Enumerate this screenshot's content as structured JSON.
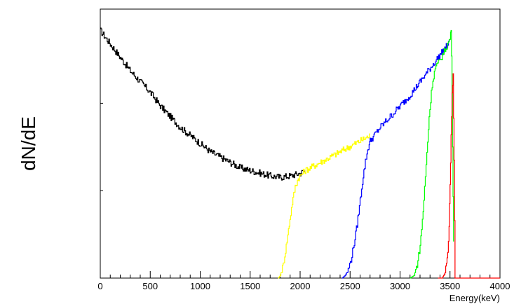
{
  "chart_data": {
    "type": "line",
    "title": "",
    "xlabel": "Energy(keV)",
    "ylabel": "dN/dE",
    "xlim": [
      0,
      4000
    ],
    "ylim": [
      0,
      1.0
    ],
    "x_ticks": [
      0,
      500,
      1000,
      1500,
      2000,
      2500,
      3000,
      3500,
      4000
    ],
    "x_tick_labels": [
      "0",
      "500",
      "1000",
      "1500",
      "2000",
      "2500",
      "3000",
      "3500",
      "4000"
    ],
    "y_tick_labels_shown": false,
    "grid": false,
    "legend": "none",
    "series": [
      {
        "color": "#000000",
        "x": [
          0,
          100,
          200,
          300,
          400,
          500,
          600,
          700,
          800,
          900,
          1000,
          1100,
          1200,
          1300,
          1400,
          1500,
          1600,
          1700,
          1800,
          1900,
          2000,
          2050
        ],
        "y": [
          0.92,
          0.87,
          0.82,
          0.77,
          0.73,
          0.69,
          0.64,
          0.6,
          0.56,
          0.53,
          0.5,
          0.47,
          0.45,
          0.43,
          0.41,
          0.4,
          0.39,
          0.38,
          0.375,
          0.38,
          0.39,
          0.4
        ]
      },
      {
        "color": "#ffff00",
        "x": [
          1780,
          1800,
          1830,
          1860,
          1890,
          1920,
          1950,
          1980,
          2000,
          2050,
          2100,
          2200,
          2300,
          2400,
          2500,
          2600,
          2700
        ],
        "y": [
          0.0,
          0.01,
          0.05,
          0.12,
          0.2,
          0.28,
          0.34,
          0.37,
          0.38,
          0.4,
          0.41,
          0.43,
          0.45,
          0.47,
          0.49,
          0.51,
          0.53
        ]
      },
      {
        "color": "#0000ff",
        "x": [
          2420,
          2450,
          2480,
          2510,
          2540,
          2570,
          2600,
          2630,
          2660,
          2690,
          2700,
          2800,
          2900,
          3000,
          3100,
          3200,
          3300,
          3400,
          3500
        ],
        "y": [
          0.0,
          0.01,
          0.03,
          0.07,
          0.13,
          0.2,
          0.29,
          0.38,
          0.45,
          0.5,
          0.51,
          0.56,
          0.6,
          0.64,
          0.68,
          0.73,
          0.78,
          0.83,
          0.88
        ]
      },
      {
        "color": "#00ff00",
        "x": [
          3100,
          3140,
          3170,
          3200,
          3230,
          3260,
          3290,
          3320,
          3350,
          3400,
          3450,
          3500,
          3510,
          3520,
          3530,
          3540
        ],
        "y": [
          0.0,
          0.01,
          0.05,
          0.12,
          0.25,
          0.42,
          0.6,
          0.72,
          0.78,
          0.81,
          0.85,
          0.89,
          0.93,
          0.7,
          0.3,
          0.0
        ]
      },
      {
        "color": "#ff0000",
        "x": [
          3380,
          3420,
          3450,
          3470,
          3490,
          3500,
          3510,
          3520,
          3530,
          3540,
          3550,
          3560,
          4000
        ],
        "y": [
          0.0,
          0.0,
          0.02,
          0.07,
          0.18,
          0.35,
          0.52,
          0.68,
          0.75,
          0.45,
          0.0,
          0.0,
          0.0
        ]
      }
    ]
  }
}
